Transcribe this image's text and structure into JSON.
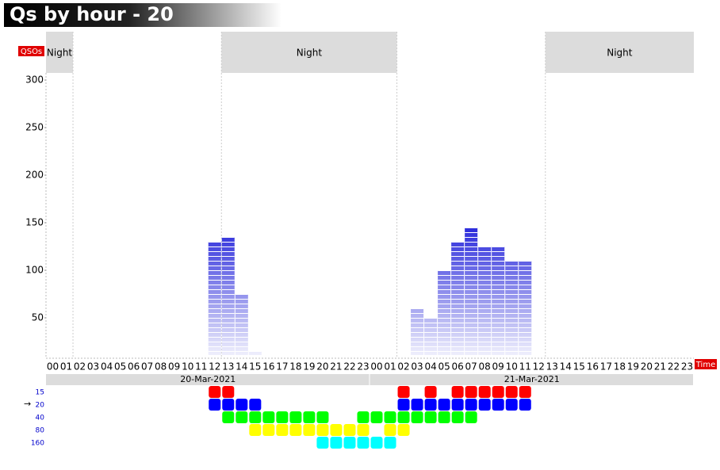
{
  "chart_data": {
    "type": "bar",
    "title": "Qs by hour - 20",
    "y_label": "QSOs",
    "x_label": "Time",
    "categories": [
      "00",
      "01",
      "02",
      "03",
      "04",
      "05",
      "06",
      "07",
      "08",
      "09",
      "10",
      "11",
      "12",
      "13",
      "14",
      "15",
      "16",
      "17",
      "18",
      "19",
      "20",
      "21",
      "22",
      "23",
      "00",
      "01",
      "02",
      "03",
      "04",
      "05",
      "06",
      "07",
      "08",
      "09",
      "10",
      "11",
      "12",
      "13",
      "14",
      "15",
      "16",
      "17",
      "18",
      "19",
      "20",
      "21",
      "22",
      "23"
    ],
    "values": [
      0,
      0,
      0,
      0,
      0,
      0,
      0,
      0,
      0,
      0,
      0,
      0,
      130,
      135,
      75,
      15,
      0,
      0,
      0,
      0,
      0,
      0,
      0,
      0,
      0,
      0,
      10,
      60,
      50,
      100,
      130,
      145,
      125,
      125,
      110,
      110,
      0,
      0,
      0,
      0,
      0,
      0,
      0,
      0,
      0,
      0,
      0,
      0
    ],
    "color": "#2f2fdc",
    "ylim": [
      7.5,
      307.5
    ],
    "yticks": [
      50,
      100,
      150,
      200,
      250,
      300
    ],
    "dates": [
      {
        "label": "20-Mar-2021",
        "start": 0,
        "end": 24
      },
      {
        "label": "21-Mar-2021",
        "start": 24,
        "end": 48
      }
    ],
    "night_bands": [
      {
        "label": "Night",
        "start": 0,
        "end": 2
      },
      {
        "label": "Night",
        "start": 13,
        "end": 26
      },
      {
        "label": "Night",
        "start": 37,
        "end": 48
      }
    ],
    "band_activity": {
      "current": "→",
      "current_band": 1,
      "bands": [
        {
          "name": "15",
          "color": "#ff0000",
          "hours": [
            12,
            13,
            26,
            28,
            30,
            31,
            32,
            33,
            34,
            35
          ]
        },
        {
          "name": "20",
          "color": "#0000ff",
          "hours": [
            12,
            13,
            14,
            15,
            26,
            27,
            28,
            29,
            30,
            31,
            32,
            33,
            34,
            35
          ]
        },
        {
          "name": "40",
          "color": "#00ff00",
          "hours": [
            13,
            14,
            15,
            16,
            17,
            18,
            19,
            20,
            23,
            24,
            25,
            26,
            27,
            28,
            29,
            30,
            31
          ]
        },
        {
          "name": "80",
          "color": "#ffff00",
          "hours": [
            15,
            16,
            17,
            18,
            19,
            20,
            21,
            22,
            23,
            25,
            26
          ]
        },
        {
          "name": "160",
          "color": "#00ffff",
          "hours": [
            20,
            21,
            22,
            23,
            24,
            25
          ]
        }
      ]
    }
  }
}
